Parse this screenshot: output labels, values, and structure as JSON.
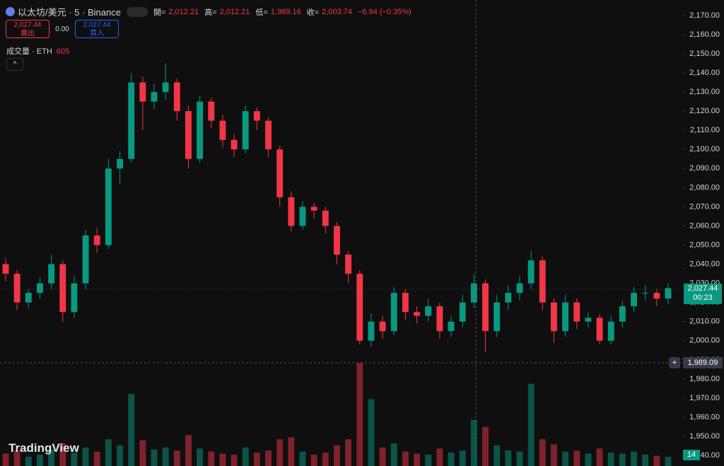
{
  "chart_data": {
    "type": "candlestick",
    "title": "以太坊/美元 · 5 · Binance",
    "ohlc_labels": {
      "open_label": "開=",
      "open": "2,012.21",
      "high_label": "高=",
      "high": "2,012.21",
      "low_label": "低=",
      "low": "1,989.16",
      "close_label": "收=",
      "close": "2,003.74",
      "change": "−6.94 (−0.35%)"
    },
    "sell_price": "2,027.44",
    "sell_label": "賣出",
    "spread": "0.00",
    "buy_price": "2,027.44",
    "buy_label": "買入",
    "volume_title": "成交量 · ETH",
    "volume_value": "605",
    "last_price_label": "2,027.44",
    "countdown": "00:23",
    "crosshair_price": "1,989.09",
    "volume_scale_label": "14",
    "brand": "TradingView",
    "up_color": "#089981",
    "down_color": "#f23645",
    "ylim": [
      1934.5,
      2178.1
    ],
    "yticks": [
      {
        "value": 2170,
        "label": "2,170.00"
      },
      {
        "value": 2160,
        "label": "2,160.00"
      },
      {
        "value": 2150,
        "label": "2,150.00"
      },
      {
        "value": 2140,
        "label": "2,140.00"
      },
      {
        "value": 2130,
        "label": "2,130.00"
      },
      {
        "value": 2120,
        "label": "2,120.00"
      },
      {
        "value": 2110,
        "label": "2,110.00"
      },
      {
        "value": 2100,
        "label": "2,100.00"
      },
      {
        "value": 2090,
        "label": "2,090.00"
      },
      {
        "value": 2080,
        "label": "2,080.00"
      },
      {
        "value": 2070,
        "label": "2,070.00"
      },
      {
        "value": 2060,
        "label": "2,060.00"
      },
      {
        "value": 2050,
        "label": "2,050.00"
      },
      {
        "value": 2040,
        "label": "2,040.00"
      },
      {
        "value": 2030,
        "label": "2,030.00"
      },
      {
        "value": 2020,
        "label": "2,020.00"
      },
      {
        "value": 2010,
        "label": "2,010.00"
      },
      {
        "value": 2000,
        "label": "2,000.00"
      },
      {
        "value": 1990,
        "label": "1,990.00"
      },
      {
        "value": 1980,
        "label": "1,980.00"
      },
      {
        "value": 1970,
        "label": "1,970.00"
      },
      {
        "value": 1960,
        "label": "1,960.00"
      },
      {
        "value": 1950,
        "label": "1,950.00"
      },
      {
        "value": 1940,
        "label": "1,940.00"
      }
    ],
    "volume_lim": [
      0,
      1100
    ],
    "open": [
      2040,
      2035,
      2020,
      2025,
      2030,
      2040,
      2015,
      2030,
      2055,
      2050,
      2090,
      2095,
      2135,
      2125,
      2130,
      2135,
      2120,
      2095,
      2125,
      2115,
      2105,
      2100,
      2120,
      2115,
      2100,
      2075,
      2060,
      2070,
      2068,
      2060,
      2045,
      2035,
      2000,
      2010,
      2005,
      2025,
      2015,
      2013,
      2018,
      2005,
      2010,
      2020,
      2030,
      2005,
      2020,
      2025,
      2030,
      2042,
      2020,
      2005,
      2020,
      2010,
      2012,
      2000,
      2010,
      2018,
      2025,
      2025,
      2022
    ],
    "high": [
      2043,
      2037,
      2027,
      2033,
      2045,
      2042,
      2034,
      2058,
      2059,
      2095,
      2099,
      2140,
      2138,
      2134,
      2145,
      2137,
      2123,
      2128,
      2127,
      2118,
      2108,
      2123,
      2122,
      2117,
      2102,
      2078,
      2073,
      2072,
      2070,
      2062,
      2047,
      2037,
      2014,
      2013,
      2028,
      2027,
      2018,
      2022,
      2020,
      2013,
      2024,
      2035,
      2032,
      2024,
      2029,
      2034,
      2047,
      2044,
      2022,
      2024,
      2022,
      2015,
      2014,
      2013,
      2021,
      2028,
      2029,
      2027,
      2030
    ],
    "low": [
      2031,
      2016,
      2017,
      2022,
      2027,
      2010,
      2012,
      2027,
      2046,
      2048,
      2082,
      2093,
      2110,
      2121,
      2126,
      2115,
      2090,
      2093,
      2111,
      2101,
      2096,
      2098,
      2110,
      2096,
      2070,
      2057,
      2058,
      2064,
      2056,
      2040,
      2030,
      1998,
      1997,
      2001,
      2003,
      2011,
      2009,
      2010,
      2001,
      2002,
      2007,
      2017,
      1994,
      2002,
      2016,
      2021,
      2027,
      2016,
      1999,
      2002,
      2006,
      2007,
      1998,
      1998,
      2007,
      2015,
      2021,
      2018,
      2019
    ],
    "close": [
      2035,
      2020,
      2025,
      2030,
      2040,
      2015,
      2030,
      2055,
      2050,
      2090,
      2095,
      2135,
      2125,
      2130,
      2135,
      2120,
      2095,
      2125,
      2115,
      2105,
      2100,
      2120,
      2115,
      2100,
      2075,
      2060,
      2070,
      2068,
      2060,
      2045,
      2035,
      2000,
      2010,
      2005,
      2025,
      2015,
      2013,
      2018,
      2005,
      2010,
      2020,
      2030,
      2005,
      2020,
      2025,
      2030,
      2042,
      2020,
      2005,
      2020,
      2010,
      2012,
      2000,
      2010,
      2018,
      2025,
      2025,
      2022,
      2027.44
    ],
    "volume": [
      120,
      150,
      90,
      110,
      160,
      220,
      130,
      180,
      140,
      260,
      200,
      700,
      250,
      160,
      180,
      150,
      300,
      170,
      140,
      120,
      110,
      180,
      130,
      150,
      260,
      280,
      140,
      110,
      130,
      200,
      260,
      1000,
      650,
      180,
      220,
      140,
      120,
      110,
      170,
      130,
      150,
      450,
      380,
      200,
      150,
      140,
      800,
      260,
      210,
      140,
      150,
      120,
      170,
      130,
      120,
      140,
      110,
      100,
      90
    ]
  }
}
